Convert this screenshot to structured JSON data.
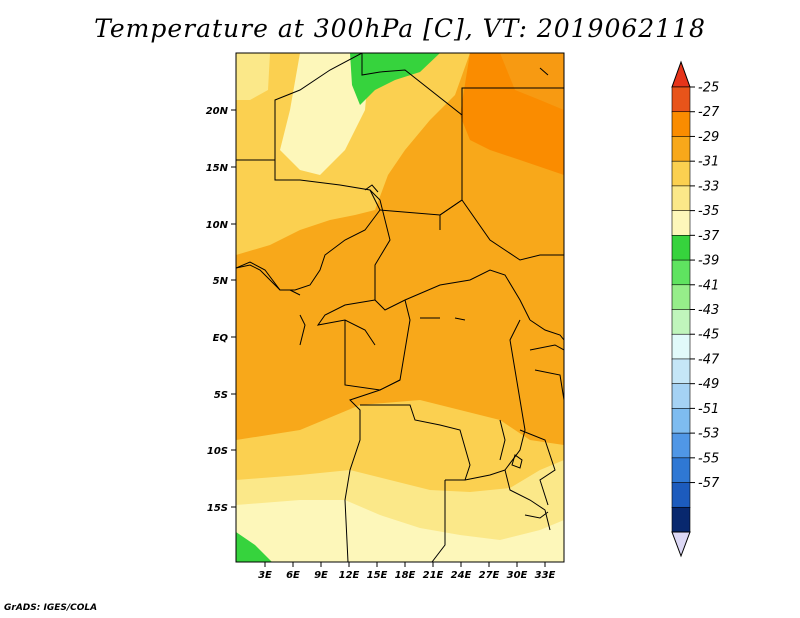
{
  "title": "Temperature at 300hPa [C], VT: 2019062118",
  "credit": "GrADS: IGES/COLA",
  "map": {
    "lon_labels": [
      "3E",
      "6E",
      "9E",
      "12E",
      "15E",
      "18E",
      "21E",
      "24E",
      "27E",
      "30E",
      "33E"
    ],
    "lat_labels": [
      "20N",
      "15N",
      "10N",
      "5N",
      "EQ",
      "5S",
      "10S",
      "15S"
    ]
  },
  "colorbar": {
    "labels": [
      "-25",
      "-27",
      "-29",
      "-31",
      "-33",
      "-35",
      "-37",
      "-39",
      "-41",
      "-43",
      "-45",
      "-47",
      "-49",
      "-51",
      "-53",
      "-55",
      "-57"
    ],
    "colors": [
      "#e8541a",
      "#fa8c00",
      "#f8a81a",
      "#fbd050",
      "#fbe889",
      "#fdf7ba",
      "#36d33d",
      "#5fe360",
      "#96ee8a",
      "#c0f5bc",
      "#e1fafa",
      "#c5e6f7",
      "#a5d2f4",
      "#7ebcf0",
      "#5097e6",
      "#2f78d4",
      "#1c5bbd",
      "#08286e"
    ],
    "top_arrow_color": "#e6341a",
    "bottom_arrow_color": "#dcd8f5"
  }
}
